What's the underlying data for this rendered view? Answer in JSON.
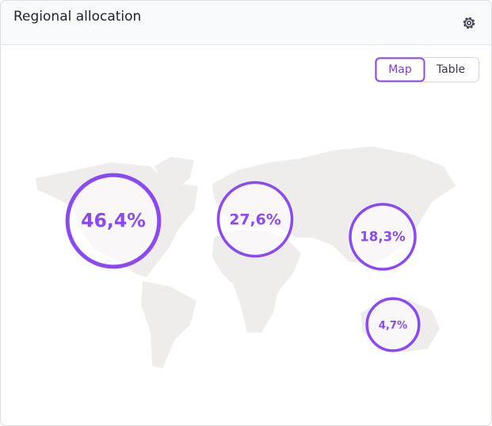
{
  "header": {
    "title": "Regional allocation"
  },
  "toggle": {
    "options": [
      "Map",
      "Table"
    ]
  },
  "chart_data": {
    "type": "bubble-map",
    "values": [
      46.4,
      27.6,
      18.3,
      4.7
    ],
    "value_labels": [
      "46,4%",
      "27,6%",
      "18,3%",
      "4,7%"
    ],
    "color": "#8a4af3"
  }
}
